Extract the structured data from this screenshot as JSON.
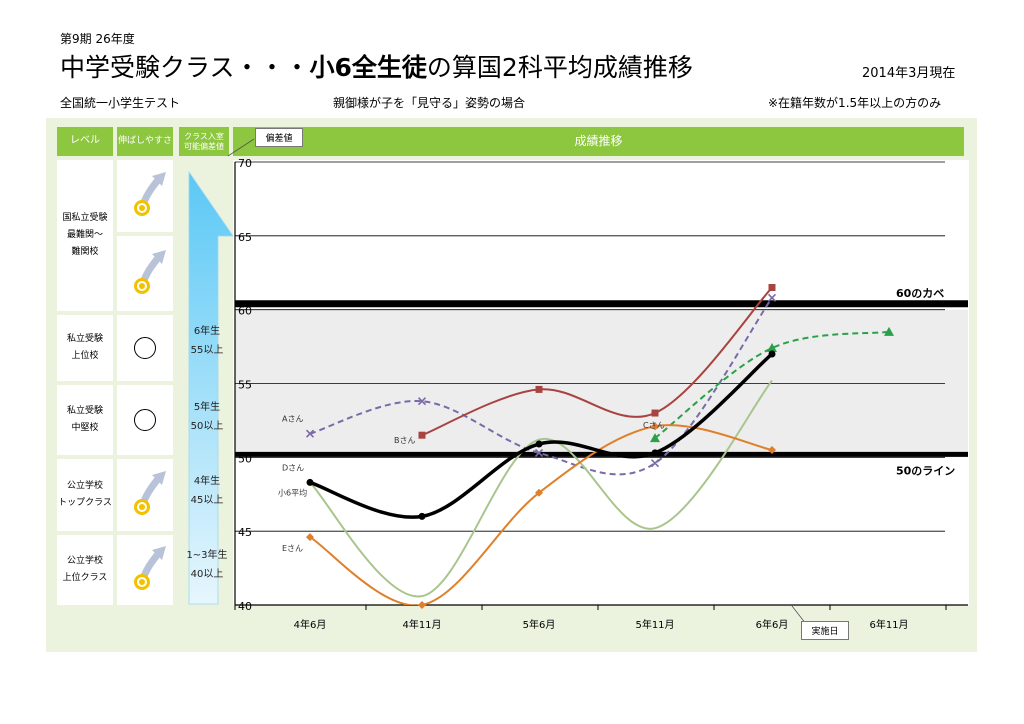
{
  "header": {
    "period": "第9期 26年度",
    "title_pre": "中学受験クラス・・・",
    "title_bold": "小6全生徒",
    "title_post": "の算国2科平均成績推移",
    "date": "2014年3月現在"
  },
  "subheader": {
    "left": "全国統一小学生テスト",
    "middle": "親御様が子を「見守る」姿勢の場合",
    "right": "※在籍年数が1.5年以上の方のみ"
  },
  "table": {
    "col_level": "レベル",
    "col_ease": "伸ばしやすさ",
    "col_req1": "クラス入室",
    "col_req2": "可能偏差値",
    "col_chart": "成績推移",
    "rows": [
      {
        "level1": "国私立受験",
        "level2": "最難関～",
        "level3": "難関校",
        "ease": "double-circle-arrow-icon"
      },
      {
        "level1": "",
        "level2": "",
        "level3": "",
        "ease": "double-circle-arrow-icon"
      },
      {
        "level1": "私立受験",
        "level2": "上位校",
        "level3": "",
        "ease": "circle-icon"
      },
      {
        "level1": "私立受験",
        "level2": "中堅校",
        "level3": "",
        "ease": "circle-icon"
      },
      {
        "level1": "公立学校",
        "level2": "トップクラス",
        "level3": "",
        "ease": "double-circle-arrow-icon"
      },
      {
        "level1": "公立学校",
        "level2": "上位クラス",
        "level3": "",
        "ease": "double-circle-arrow-icon"
      }
    ],
    "grades": [
      {
        "grade": "6年生",
        "req": "55以上"
      },
      {
        "grade": "5年生",
        "req": "50以上"
      },
      {
        "grade": "4年生",
        "req": "45以上"
      },
      {
        "grade": "1~3年生",
        "req": "40以上"
      }
    ]
  },
  "legend": {
    "hensa": "偏差値",
    "jisshi": "実施日"
  },
  "colors": {
    "header_green": "#8dc63f",
    "panel_bg": "#ebf3df",
    "band_gray": "#ededed",
    "arrow_blue": "#5bc8f5",
    "series_a": "#7a6aa8",
    "series_b": "#a8443f",
    "series_c": "#2aa04a",
    "series_d": "#a9c58e",
    "series_e": "#e07f2a",
    "series_avg": "#000000"
  },
  "chart_data": {
    "type": "line",
    "categories": [
      "4年6月",
      "4年11月",
      "5年6月",
      "5年11月",
      "6年6月",
      "6年11月"
    ],
    "ylim": [
      40,
      70
    ],
    "yticks": [
      40,
      45,
      50,
      55,
      60,
      65,
      70
    ],
    "grid": true,
    "band": [
      50,
      60
    ],
    "reference_lines": [
      {
        "value": 60.4,
        "label": "60のカベ"
      },
      {
        "value": 50.2,
        "label": "50のライン"
      }
    ],
    "series": [
      {
        "name": "Aさん",
        "style": "dashed",
        "marker": "x",
        "values": [
          51.6,
          53.8,
          50.3,
          49.6,
          60.8,
          null
        ]
      },
      {
        "name": "Bさん",
        "style": "solid",
        "marker": "square",
        "values": [
          null,
          51.5,
          54.6,
          53.0,
          61.5,
          null
        ]
      },
      {
        "name": "Cさん",
        "style": "dashed",
        "marker": "triangle",
        "values": [
          null,
          null,
          null,
          51.3,
          57.4,
          58.5
        ]
      },
      {
        "name": "Dさん",
        "style": "solid",
        "marker": "none",
        "values": [
          48.3,
          40.6,
          51.2,
          45.2,
          55.2,
          null
        ]
      },
      {
        "name": "Eさん",
        "style": "solid",
        "marker": "diamond",
        "values": [
          44.6,
          40.0,
          47.6,
          52.1,
          50.5,
          null
        ]
      },
      {
        "name": "小6平均",
        "style": "solid-bold",
        "marker": "circle",
        "values": [
          48.3,
          46.0,
          50.9,
          50.3,
          57.0,
          null
        ]
      }
    ],
    "series_labels": [
      {
        "text": "Aさん",
        "series": 0
      },
      {
        "text": "Bさん",
        "series": 1
      },
      {
        "text": "Cさん",
        "series": 2
      },
      {
        "text": "Dさん",
        "series": 3
      },
      {
        "text": "Eさん",
        "series": 4
      },
      {
        "text": "小6平均",
        "series": 5
      }
    ]
  }
}
